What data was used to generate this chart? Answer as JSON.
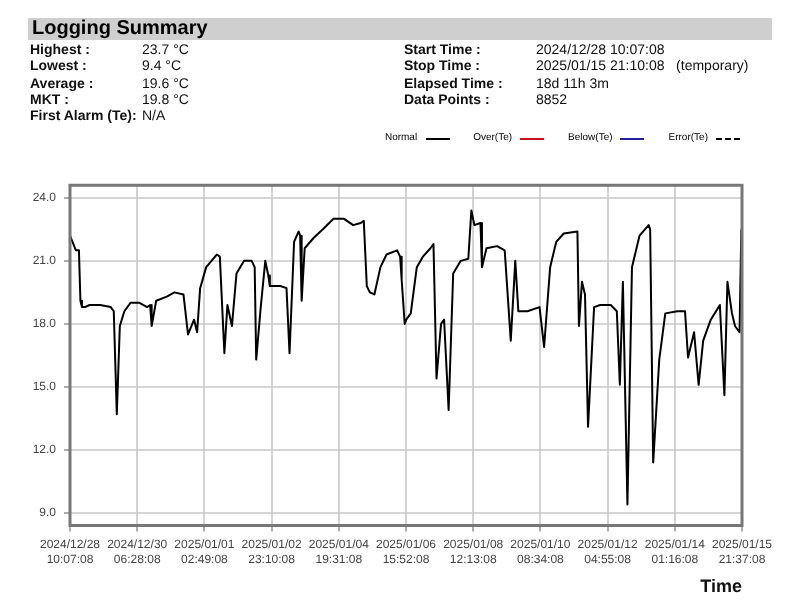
{
  "chart_data": {
    "type": "line",
    "title": "Logging Summary",
    "xlabel": "Time",
    "annotations": [
      "Highest : 23.7 °C",
      "Lowest : 9.4 °C",
      "Average : 19.6 °C",
      "MKT : 19.8 °C",
      "First Alarm (Te): N/A",
      "Start Time : 2024/12/28 10:07:08",
      "Stop Time : 2025/01/15 21:10:08   (temporary)",
      "Elapsed Time : 18d 11h 3m",
      "Data Points : 8852"
    ],
    "xlim": [
      "2024-12-28T10:07",
      "2025-01-15T21:37"
    ],
    "xticks": [
      {
        "value": "2024-12-28T10:07",
        "label": "2024/12/28 10:07:08"
      },
      {
        "value": "2024-12-30T06:28",
        "label": "2024/12/30 06:28:08"
      },
      {
        "value": "2025-01-01T02:49",
        "label": "2025/01/01 02:49:08"
      },
      {
        "value": "2025-01-02T23:10",
        "label": "2025/01/02 23:10:08"
      },
      {
        "value": "2025-01-04T19:31",
        "label": "2025/01/04 19:31:08"
      },
      {
        "value": "2025-01-06T15:52",
        "label": "2025/01/06 15:52:08"
      },
      {
        "value": "2025-01-08T12:13",
        "label": "2025/01/08 12:13:08"
      },
      {
        "value": "2025-01-10T08:34",
        "label": "2025/01/10 08:34:08"
      },
      {
        "value": "2025-01-12T04:55",
        "label": "2025/01/12 04:55:08"
      },
      {
        "value": "2025-01-14T01:16",
        "label": "2025/01/14 01:16:08"
      },
      {
        "value": "2025-01-15T21:37",
        "label": "2025/01/15 21:37:08"
      }
    ],
    "ylim": [
      8.4,
      24.6
    ],
    "yticks": [
      {
        "value": 9,
        "label": "9.0"
      },
      {
        "value": 12,
        "label": "12.0"
      },
      {
        "value": 15,
        "label": "15.0"
      },
      {
        "value": 18,
        "label": "18.0"
      },
      {
        "value": 21,
        "label": "21.0"
      },
      {
        "value": 24,
        "label": "24.0"
      }
    ],
    "grid": true,
    "legend": "top right",
    "marker": "none",
    "series": [
      {
        "name": "Normal",
        "color": "#000000",
        "line_style": "solid",
        "x": [
          "2024-12-28T10:07",
          "2024-12-28T14:00",
          "2024-12-28T16:00",
          "2024-12-28T17:00",
          "2024-12-28T18:00",
          "2024-12-28T20:00",
          "2024-12-28T23:00",
          "2024-12-29T02:00",
          "2024-12-29T06:00",
          "2024-12-29T13:00",
          "2024-12-29T15:00",
          "2024-12-29T17:00",
          "2024-12-29T19:00",
          "2024-12-29T22:00",
          "2024-12-30T02:00",
          "2024-12-30T08:00",
          "2024-12-30T13:00",
          "2024-12-30T15:00",
          "2024-12-30T16:00",
          "2024-12-30T19:00",
          "2024-12-31T02:00",
          "2024-12-31T07:00",
          "2024-12-31T13:00",
          "2024-12-31T16:00",
          "2024-12-31T20:00",
          "2024-12-31T22:00",
          "2025-01-01T00:00",
          "2025-01-01T04:00",
          "2025-01-01T11:00",
          "2025-01-01T13:00",
          "2025-01-01T16:00",
          "2025-01-01T18:00",
          "2025-01-01T21:00",
          "2025-01-02T00:00",
          "2025-01-02T05:00",
          "2025-01-02T10:00",
          "2025-01-02T12:00",
          "2025-01-02T13:00",
          "2025-01-02T16:00",
          "2025-01-02T19:00",
          "2025-01-02T21:00",
          "2025-01-02T22:00",
          "2025-01-03T05:00",
          "2025-01-03T09:00",
          "2025-01-03T11:00",
          "2025-01-03T14:00",
          "2025-01-03T17:00",
          "2025-01-03T18:00",
          "2025-01-03T19:00",
          "2025-01-03T21:00",
          "2025-01-04T03:00",
          "2025-01-04T09:00",
          "2025-01-04T16:00",
          "2025-01-04T23:00",
          "2025-01-05T05:00",
          "2025-01-05T10:00",
          "2025-01-05T12:00",
          "2025-01-05T14:00",
          "2025-01-05T16:00",
          "2025-01-05T19:00",
          "2025-01-05T23:00",
          "2025-01-06T03:00",
          "2025-01-06T10:00",
          "2025-01-06T12:00",
          "2025-01-06T13:00",
          "2025-01-06T15:00",
          "2025-01-06T16:00",
          "2025-01-06T19:00",
          "2025-01-06T23:00",
          "2025-01-07T03:00",
          "2025-01-07T08:00",
          "2025-01-07T10:00",
          "2025-01-07T12:00",
          "2025-01-07T15:00",
          "2025-01-07T17:00",
          "2025-01-07T20:00",
          "2025-01-07T23:00",
          "2025-01-08T04:00",
          "2025-01-08T09:00",
          "2025-01-08T11:00",
          "2025-01-08T13:00",
          "2025-01-08T17:00",
          "2025-01-08T18:00",
          "2025-01-08T21:00",
          "2025-01-09T04:00",
          "2025-01-09T09:00",
          "2025-01-09T13:00",
          "2025-01-09T16:00",
          "2025-01-09T18:00",
          "2025-01-10T00:00",
          "2025-01-10T08:00",
          "2025-01-10T11:00",
          "2025-01-10T15:00",
          "2025-01-10T19:00",
          "2025-01-11T00:00",
          "2025-01-11T09:00",
          "2025-01-11T10:00",
          "2025-01-11T12:00",
          "2025-01-11T14:00",
          "2025-01-11T16:00",
          "2025-01-11T20:00",
          "2025-01-12T00:00",
          "2025-01-12T07:00",
          "2025-01-12T11:00",
          "2025-01-12T13:00",
          "2025-01-12T15:00",
          "2025-01-12T18:00",
          "2025-01-12T21:00",
          "2025-01-13T02:00",
          "2025-01-13T08:00",
          "2025-01-13T09:00",
          "2025-01-13T11:00",
          "2025-01-13T15:00",
          "2025-01-13T19:00",
          "2025-01-14T03:00",
          "2025-01-14T08:00",
          "2025-01-14T10:00",
          "2025-01-14T14:00",
          "2025-01-14T17:00",
          "2025-01-14T20:00",
          "2025-01-15T01:00",
          "2025-01-15T07:00",
          "2025-01-15T10:00",
          "2025-01-15T12:00",
          "2025-01-15T15:00",
          "2025-01-15T17:00",
          "2025-01-15T20:00",
          "2025-01-15T21:10"
        ],
        "values": [
          22.2,
          21.5,
          21.5,
          19.1,
          18.8,
          18.8,
          18.9,
          18.9,
          18.9,
          18.8,
          18.6,
          13.7,
          17.9,
          18.6,
          19.0,
          19.0,
          18.8,
          18.9,
          17.9,
          19.1,
          19.3,
          19.5,
          19.4,
          17.5,
          18.2,
          17.6,
          19.7,
          20.7,
          21.3,
          21.2,
          16.6,
          18.9,
          17.9,
          20.4,
          21.0,
          21.0,
          20.7,
          16.3,
          18.8,
          21.0,
          20.3,
          19.8,
          19.8,
          19.7,
          16.6,
          21.9,
          22.4,
          22.2,
          19.1,
          21.6,
          22.1,
          22.5,
          23.0,
          23.0,
          22.7,
          22.8,
          22.9,
          19.8,
          19.5,
          19.4,
          20.7,
          21.3,
          21.5,
          21.2,
          20.1,
          18.0,
          18.2,
          18.5,
          20.7,
          21.2,
          21.6,
          21.8,
          15.4,
          18.0,
          18.2,
          13.9,
          20.4,
          21.0,
          21.1,
          23.4,
          22.7,
          22.8,
          20.7,
          21.6,
          21.7,
          21.5,
          17.2,
          21.0,
          18.6,
          18.6,
          18.8,
          16.9,
          20.7,
          21.9,
          22.3,
          22.4,
          17.9,
          20.0,
          19.4,
          13.1,
          18.8,
          18.9,
          18.9,
          18.6,
          15.1,
          20.0,
          9.4,
          20.7,
          22.2,
          22.7,
          22.5,
          11.4,
          16.3,
          18.5,
          18.6,
          18.6,
          16.4,
          17.6,
          15.1,
          17.2,
          18.2,
          18.9,
          14.6,
          20.0,
          18.5,
          17.9,
          17.6,
          22.5
        ]
      },
      {
        "name": "Over(Te)",
        "color": "#d01020",
        "line_style": "solid"
      },
      {
        "name": "Below(Te)",
        "color": "#2020a0",
        "line_style": "solid"
      },
      {
        "name": "Error(Te)",
        "color": "#000000",
        "line_style": "dashed"
      }
    ]
  }
}
